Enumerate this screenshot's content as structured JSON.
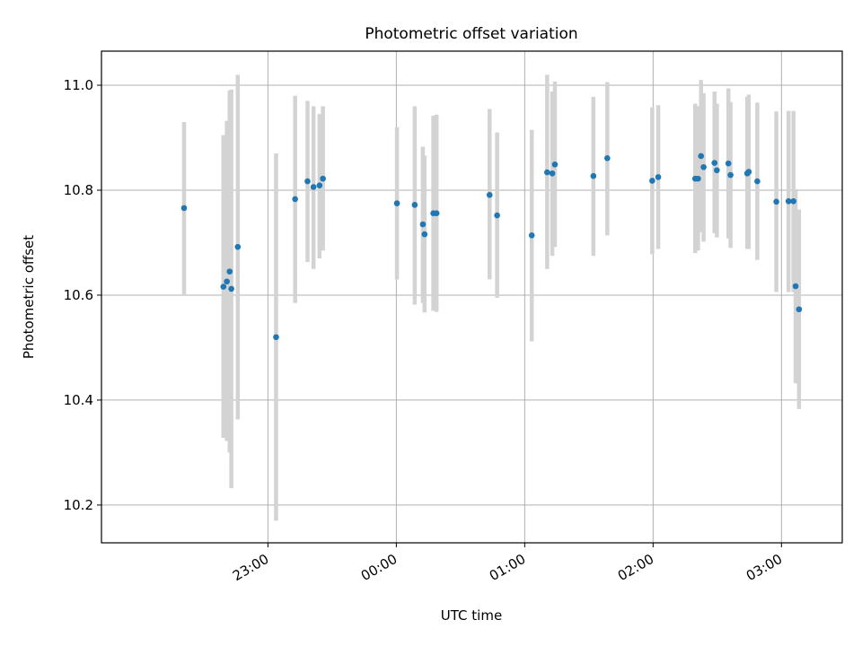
{
  "chart_data": {
    "type": "scatter",
    "title": "Photometric offset variation",
    "xlabel": "UTC time",
    "ylabel": "Photometric offset",
    "x_unit": "minutes relative to 00:00 UTC",
    "xlim": [
      -137.8,
      208.4
    ],
    "ylim": [
      10.128,
      11.065
    ],
    "x_ticks": [
      {
        "value": -60,
        "label": "23:00"
      },
      {
        "value": 0,
        "label": "00:00"
      },
      {
        "value": 60,
        "label": "01:00"
      },
      {
        "value": 120,
        "label": "02:00"
      },
      {
        "value": 180,
        "label": "03:00"
      }
    ],
    "y_ticks": [
      {
        "value": 10.2,
        "label": "10.2"
      },
      {
        "value": 10.4,
        "label": "10.4"
      },
      {
        "value": 10.6,
        "label": "10.6"
      },
      {
        "value": 10.8,
        "label": "10.8"
      },
      {
        "value": 11.0,
        "label": "11.0"
      }
    ],
    "grid": true,
    "colors": {
      "point": "#1f77b4",
      "errorbar": "#d3d3d3",
      "grid": "#b0b0b0",
      "axes": "#000000"
    },
    "series": [
      {
        "points": [
          {
            "x": -99.2,
            "y": 10.766,
            "lo": 10.6,
            "hi": 10.93
          },
          {
            "x": -80.8,
            "y": 10.616,
            "lo": 10.328,
            "hi": 10.905
          },
          {
            "x": -79.2,
            "y": 10.626,
            "lo": 10.322,
            "hi": 10.932
          },
          {
            "x": -77.9,
            "y": 10.645,
            "lo": 10.3,
            "hi": 10.99
          },
          {
            "x": -77.1,
            "y": 10.612,
            "lo": 10.232,
            "hi": 10.992
          },
          {
            "x": -74.1,
            "y": 10.692,
            "lo": 10.363,
            "hi": 11.02
          },
          {
            "x": -56.2,
            "y": 10.52,
            "lo": 10.17,
            "hi": 10.87
          },
          {
            "x": -47.3,
            "y": 10.783,
            "lo": 10.585,
            "hi": 10.98
          },
          {
            "x": -41.5,
            "y": 10.817,
            "lo": 10.663,
            "hi": 10.97
          },
          {
            "x": -38.7,
            "y": 10.806,
            "lo": 10.65,
            "hi": 10.96
          },
          {
            "x": -35.9,
            "y": 10.809,
            "lo": 10.67,
            "hi": 10.945
          },
          {
            "x": -34.3,
            "y": 10.822,
            "lo": 10.685,
            "hi": 10.96
          },
          {
            "x": 0.3,
            "y": 10.775,
            "lo": 10.63,
            "hi": 10.92
          },
          {
            "x": 8.6,
            "y": 10.772,
            "lo": 10.582,
            "hi": 10.96
          },
          {
            "x": 12.4,
            "y": 10.735,
            "lo": 10.585,
            "hi": 10.883
          },
          {
            "x": 13.2,
            "y": 10.716,
            "lo": 10.567,
            "hi": 10.866
          },
          {
            "x": 17.3,
            "y": 10.756,
            "lo": 10.57,
            "hi": 10.942
          },
          {
            "x": 18.8,
            "y": 10.756,
            "lo": 10.568,
            "hi": 10.944
          },
          {
            "x": 43.6,
            "y": 10.791,
            "lo": 10.63,
            "hi": 10.955
          },
          {
            "x": 47.1,
            "y": 10.752,
            "lo": 10.595,
            "hi": 10.91
          },
          {
            "x": 63.3,
            "y": 10.714,
            "lo": 10.512,
            "hi": 10.915
          },
          {
            "x": 70.5,
            "y": 10.834,
            "lo": 10.65,
            "hi": 11.02
          },
          {
            "x": 72.9,
            "y": 10.832,
            "lo": 10.675,
            "hi": 10.988
          },
          {
            "x": 74.1,
            "y": 10.849,
            "lo": 10.692,
            "hi": 11.007
          },
          {
            "x": 92.1,
            "y": 10.827,
            "lo": 10.675,
            "hi": 10.978
          },
          {
            "x": 98.6,
            "y": 10.861,
            "lo": 10.714,
            "hi": 11.006
          },
          {
            "x": 119.6,
            "y": 10.818,
            "lo": 10.678,
            "hi": 10.958
          },
          {
            "x": 122.4,
            "y": 10.825,
            "lo": 10.688,
            "hi": 10.962
          },
          {
            "x": 139.7,
            "y": 10.822,
            "lo": 10.68,
            "hi": 10.965
          },
          {
            "x": 141.0,
            "y": 10.822,
            "lo": 10.685,
            "hi": 10.96
          },
          {
            "x": 142.4,
            "y": 10.865,
            "lo": 10.72,
            "hi": 11.01
          },
          {
            "x": 143.6,
            "y": 10.844,
            "lo": 10.702,
            "hi": 10.985
          },
          {
            "x": 148.7,
            "y": 10.852,
            "lo": 10.718,
            "hi": 10.988
          },
          {
            "x": 149.8,
            "y": 10.838,
            "lo": 10.71,
            "hi": 10.965
          },
          {
            "x": 155.2,
            "y": 10.851,
            "lo": 10.708,
            "hi": 10.994
          },
          {
            "x": 156.2,
            "y": 10.829,
            "lo": 10.69,
            "hi": 10.968
          },
          {
            "x": 164.0,
            "y": 10.832,
            "lo": 10.688,
            "hi": 10.978
          },
          {
            "x": 164.7,
            "y": 10.835,
            "lo": 10.688,
            "hi": 10.982
          },
          {
            "x": 168.7,
            "y": 10.817,
            "lo": 10.667,
            "hi": 10.967
          },
          {
            "x": 177.6,
            "y": 10.778,
            "lo": 10.606,
            "hi": 10.95
          },
          {
            "x": 183.3,
            "y": 10.779,
            "lo": 10.606,
            "hi": 10.951
          },
          {
            "x": 185.6,
            "y": 10.779,
            "lo": 10.606,
            "hi": 10.951
          },
          {
            "x": 186.6,
            "y": 10.617,
            "lo": 10.432,
            "hi": 10.802
          },
          {
            "x": 188.2,
            "y": 10.573,
            "lo": 10.383,
            "hi": 10.763
          }
        ]
      }
    ]
  }
}
